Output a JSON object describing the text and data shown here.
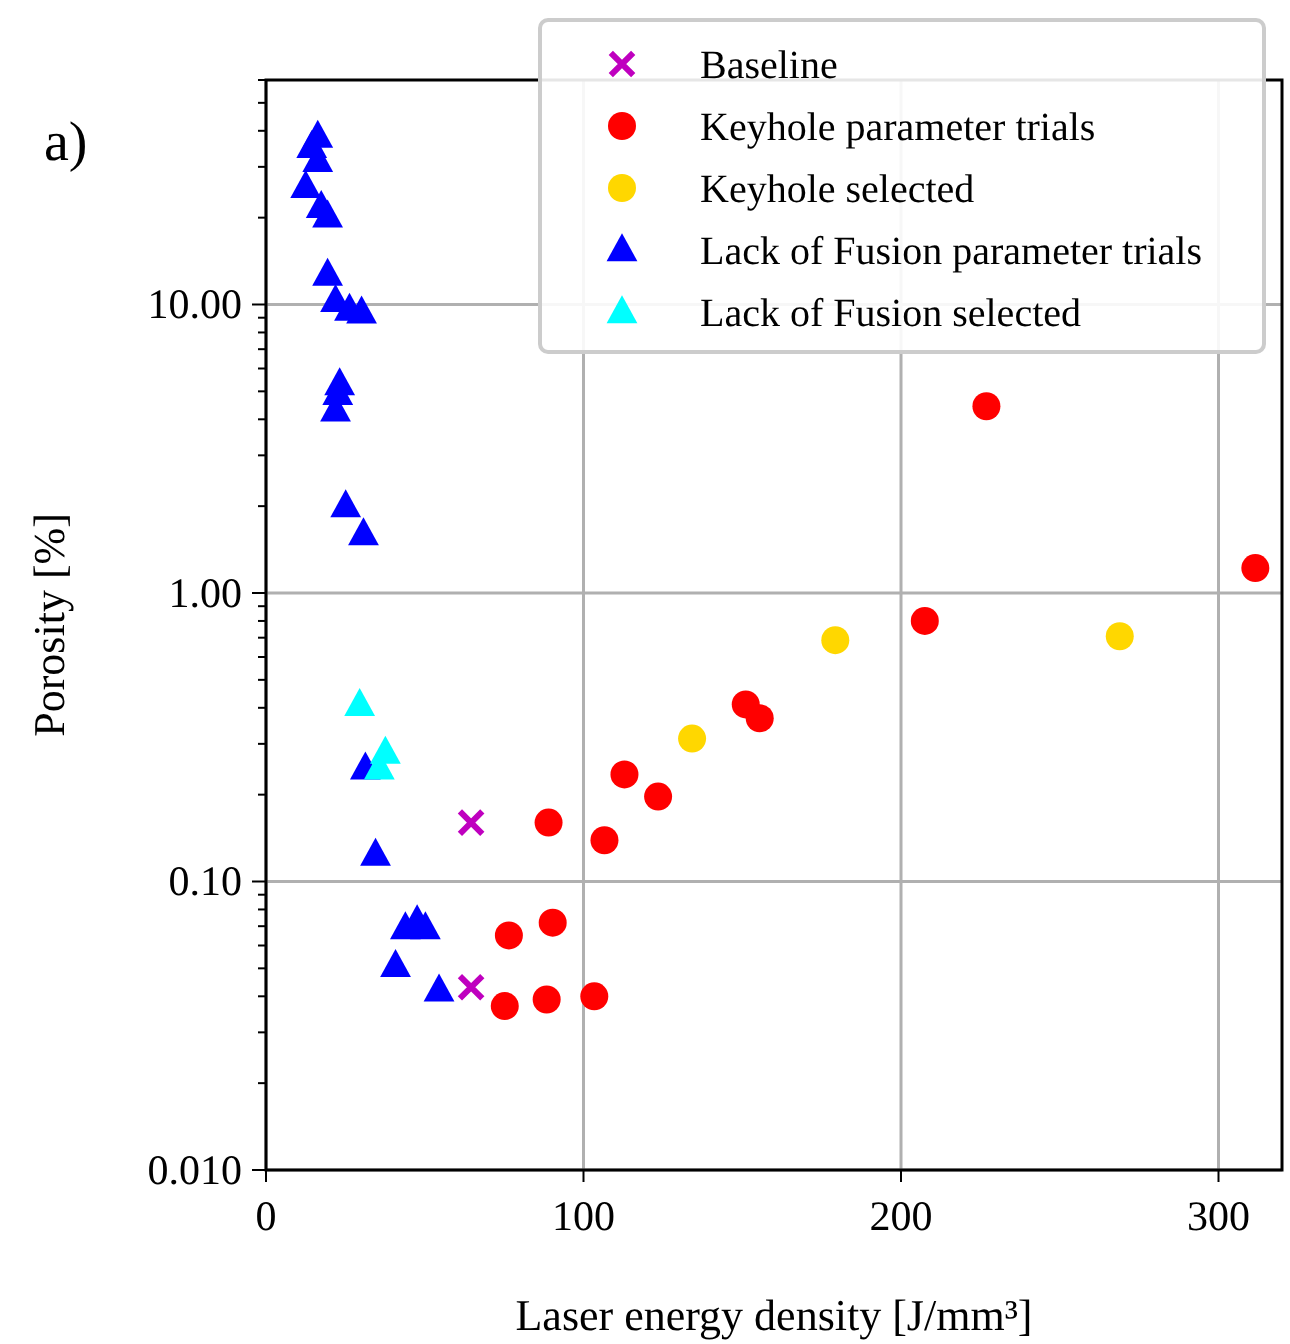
{
  "chart_data": {
    "type": "scatter",
    "title": "a)",
    "xlabel": "Laser energy density [J/mm³]",
    "ylabel": "Porosity [%]",
    "log": "y",
    "grid": true,
    "legend": "top right",
    "xlim": [
      0,
      320
    ],
    "xticks": [
      0,
      100,
      200,
      300
    ],
    "ylim": [
      0.01,
      60
    ],
    "yticks": [
      {
        "value": 0.01,
        "label": "0.010"
      },
      {
        "value": 0.1,
        "label": "0.10"
      },
      {
        "value": 1,
        "label": "1.00"
      },
      {
        "value": 10,
        "label": "10.00"
      }
    ],
    "series": [
      {
        "name": "Baseline",
        "color": "#bf00bf",
        "marker": "cross",
        "x": [
          64.6,
          64.6
        ],
        "values": [
          0.16,
          0.043
        ]
      },
      {
        "name": "Keyhole parameter trials",
        "color": "#ff0000",
        "marker": "circle",
        "x": [
          76.5,
          75.2,
          88.4,
          103.4,
          90.3,
          89.0,
          106.6,
          112.9,
          123.5,
          151.1,
          155.5,
          207.5,
          226.9,
          311.6
        ],
        "values": [
          0.065,
          0.037,
          0.039,
          0.04,
          0.072,
          0.16,
          0.139,
          0.235,
          0.197,
          0.411,
          0.368,
          0.8,
          4.44,
          1.22
        ]
      },
      {
        "name": "Keyhole selected",
        "color": "#ffd700",
        "marker": "circle",
        "x": [
          134.2,
          179.3,
          268.9
        ],
        "values": [
          0.313,
          0.686,
          0.708
        ]
      },
      {
        "name": "Lack of Fusion parameter trials",
        "color": "#0000ff",
        "marker": "triangle",
        "x": [
          16.3,
          14.4,
          16.3,
          12.5,
          17.4,
          19.4,
          19.4,
          21.9,
          26.3,
          30.1,
          23.2,
          22.6,
          21.9,
          25.1,
          30.7,
          31.3,
          34.5,
          43.9,
          47.6,
          50.2,
          40.8,
          54.5
        ],
        "values": [
          38.2,
          35.2,
          31.5,
          25.6,
          21.8,
          20.2,
          12.7,
          10.3,
          9.6,
          9.4,
          5.3,
          4.9,
          4.3,
          2.0,
          1.6,
          0.247,
          0.124,
          0.069,
          0.073,
          0.069,
          0.051,
          0.042
        ]
      },
      {
        "name": "Lack of Fusion selected",
        "color": "#00ffff",
        "marker": "triangle",
        "x": [
          29.5,
          37.6,
          35.7
        ],
        "values": [
          0.41,
          0.28,
          0.247
        ]
      }
    ]
  }
}
